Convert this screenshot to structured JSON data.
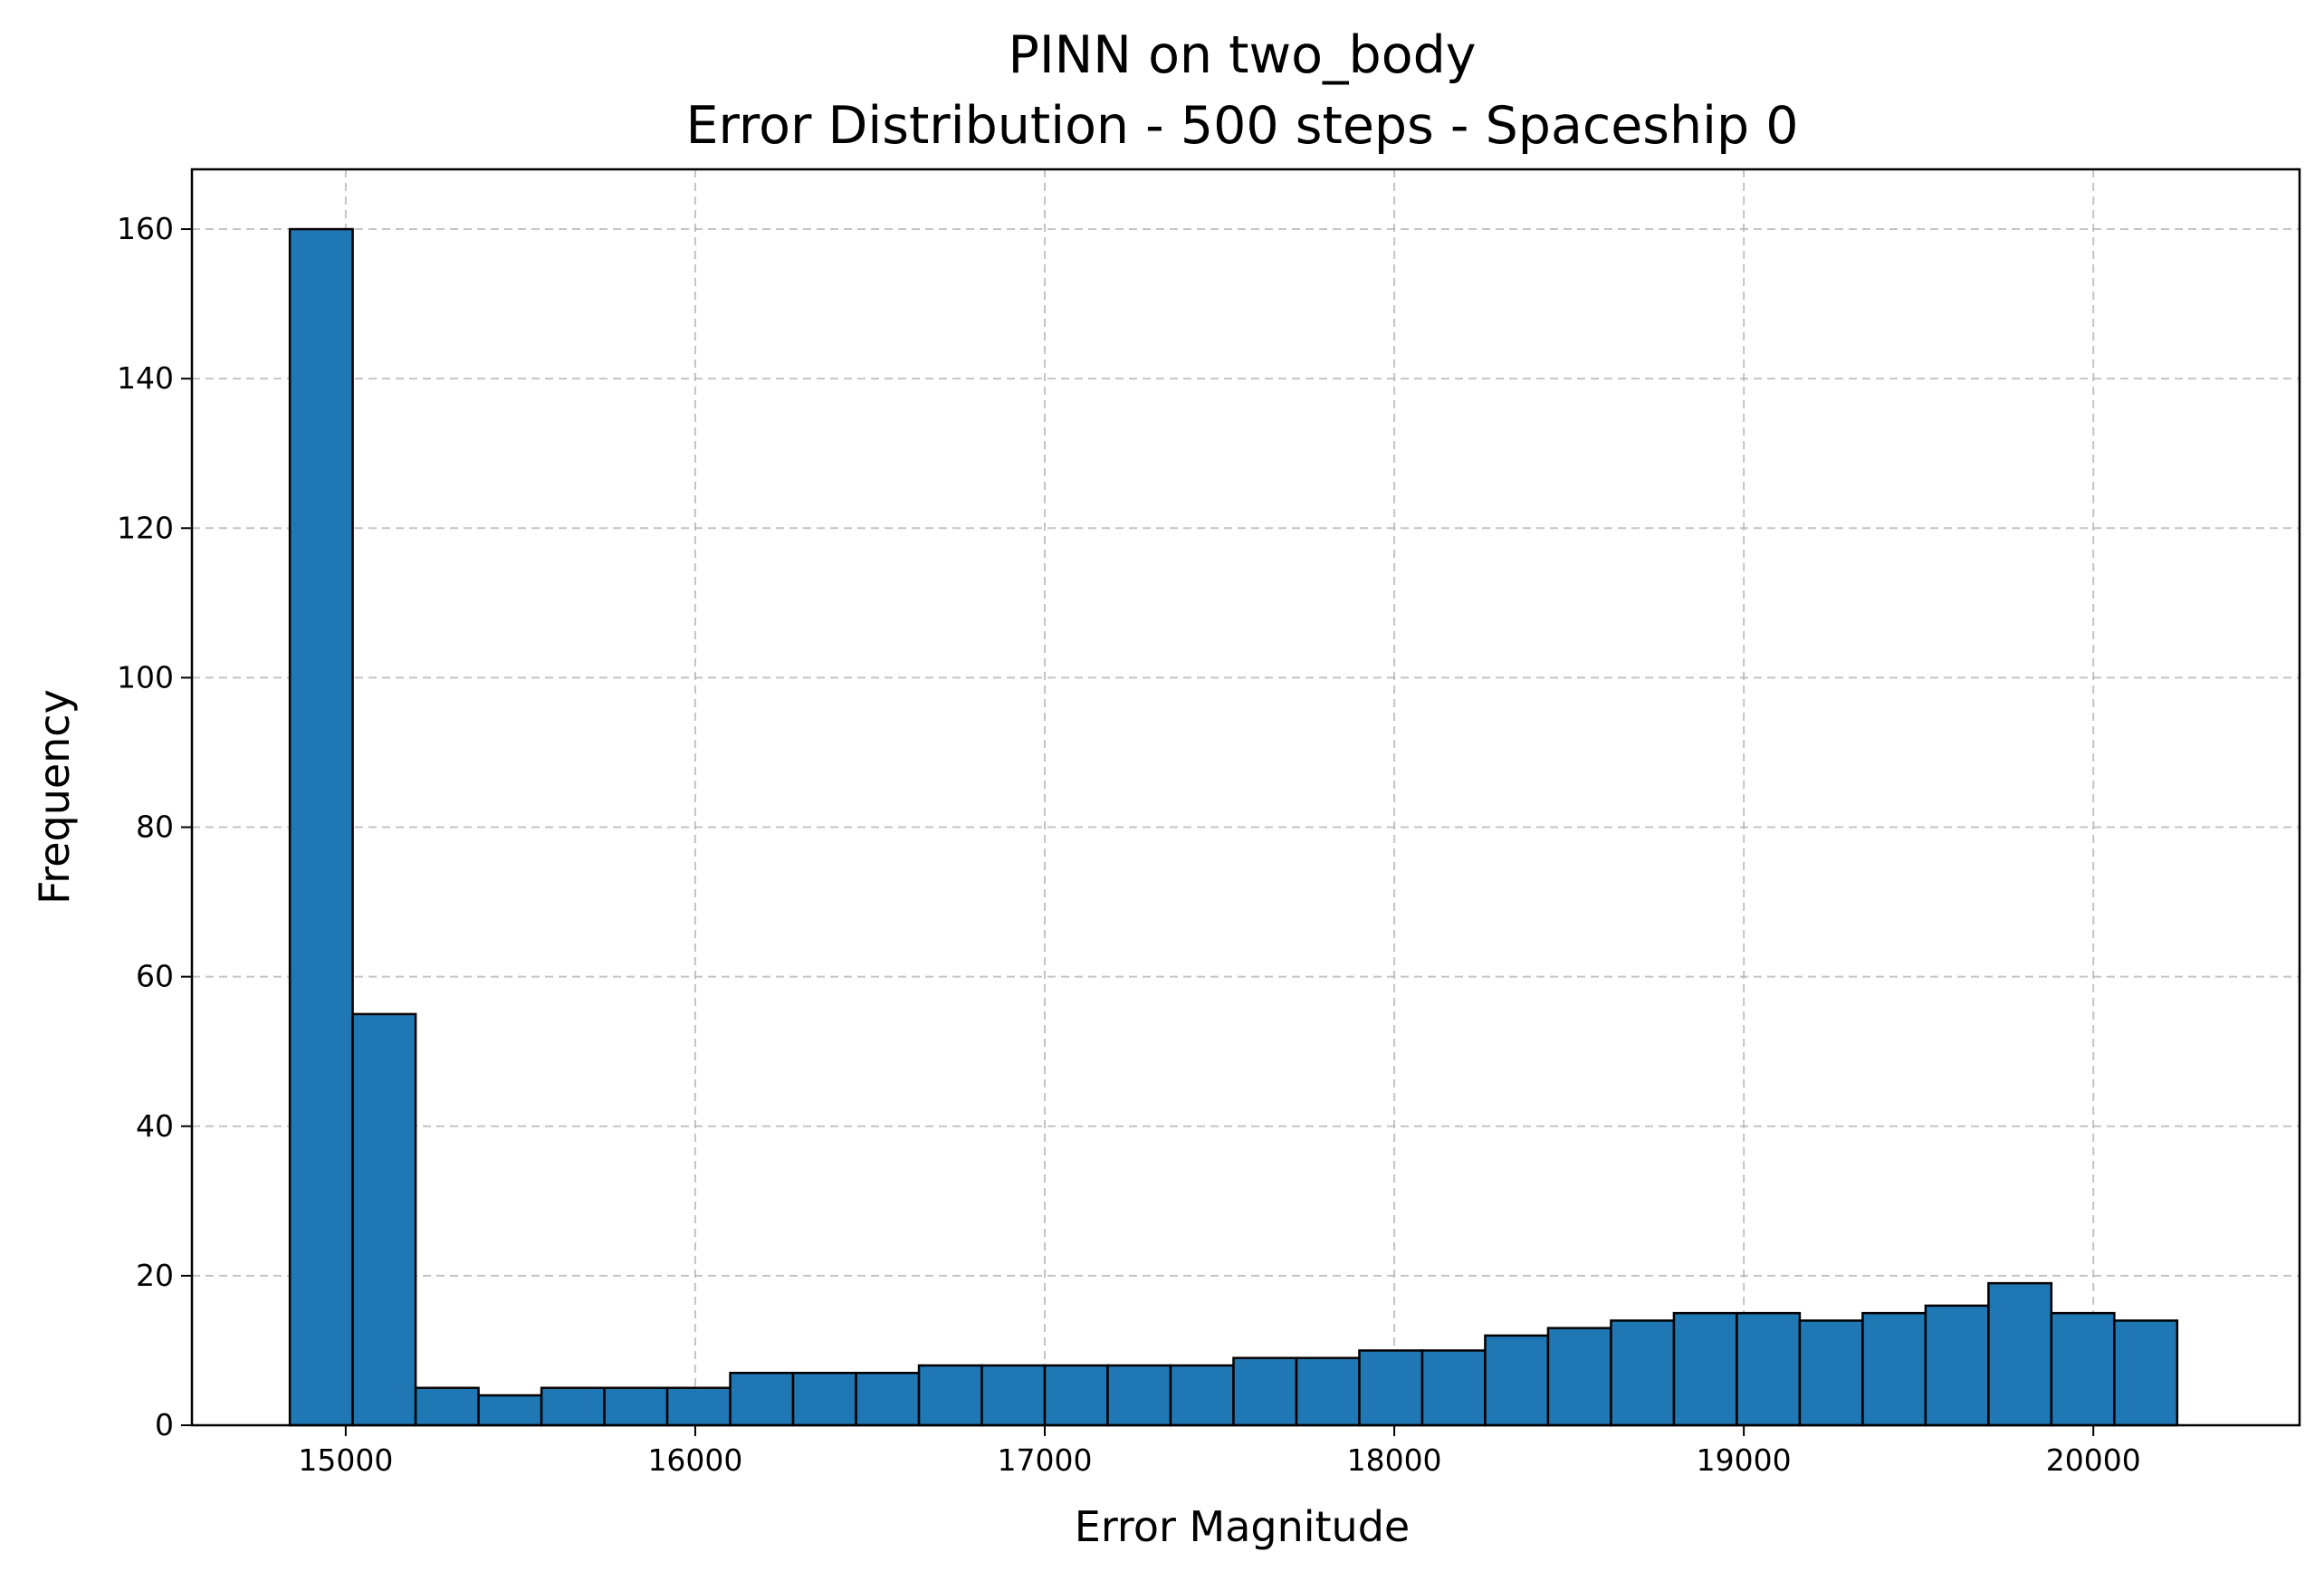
{
  "chart_data": {
    "type": "bar",
    "title": "PINN on two_body",
    "subtitle": "Error Distribution - 500 steps - Spaceship 0",
    "xlabel": "Error Magnitude",
    "ylabel": "Frequency",
    "xlim": [
      14560,
      20590
    ],
    "ylim": [
      0,
      168
    ],
    "xticks": [
      15000,
      16000,
      17000,
      18000,
      19000,
      20000
    ],
    "yticks": [
      0,
      20,
      40,
      60,
      80,
      100,
      120,
      140,
      160
    ],
    "grid": true,
    "bin_start": 14840,
    "bin_width": 180,
    "values": [
      160,
      55,
      5,
      4,
      5,
      5,
      5,
      7,
      7,
      7,
      8,
      8,
      8,
      8,
      8,
      9,
      9,
      10,
      10,
      12,
      13,
      14,
      15,
      15,
      14,
      15,
      16,
      19,
      15,
      14
    ],
    "colors": {
      "bar_fill": "#1f77b4",
      "bar_edge": "#000000",
      "grid": "#b0b0b0"
    }
  }
}
